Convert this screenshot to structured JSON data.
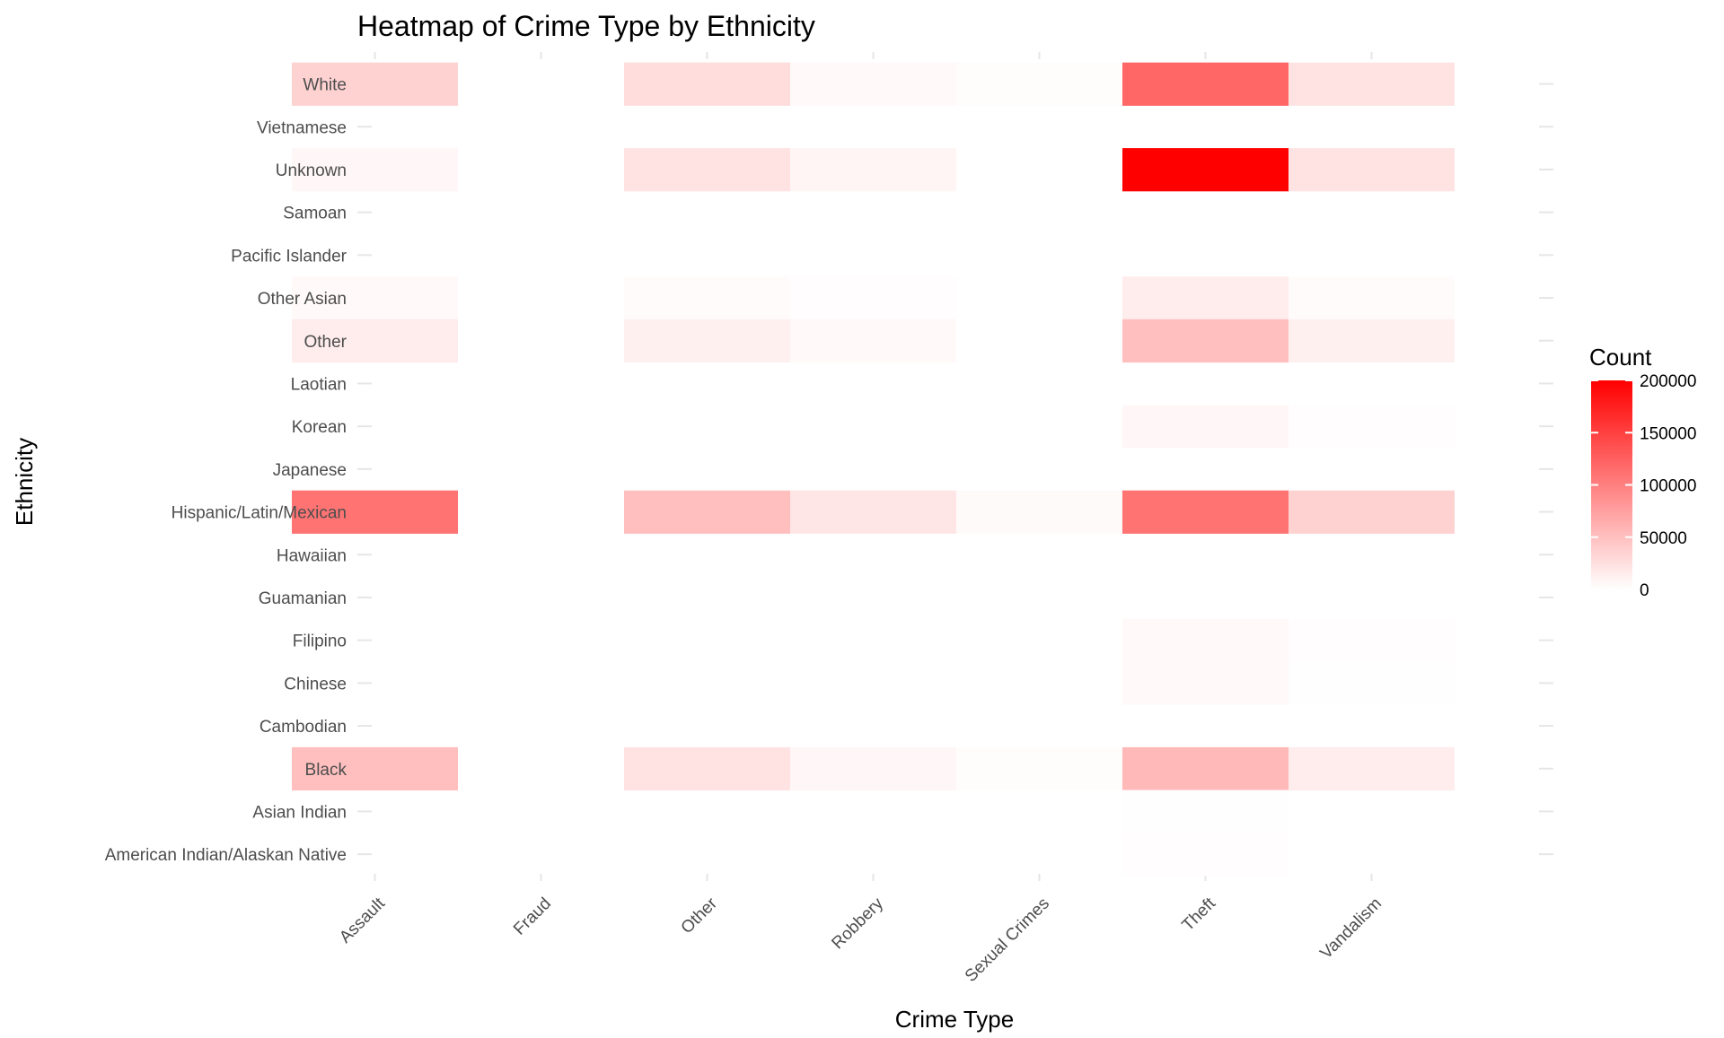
{
  "chart_data": {
    "type": "heatmap",
    "title": "Heatmap of Crime Type by Ethnicity",
    "xlabel": "Crime Type",
    "ylabel": "Ethnicity",
    "x_categories": [
      "Assault",
      "Fraud",
      "Other",
      "Robbery",
      "Sexual Crimes",
      "Theft",
      "Vandalism"
    ],
    "y_categories": [
      "American Indian/Alaskan Native",
      "Asian Indian",
      "Black",
      "Cambodian",
      "Chinese",
      "Filipino",
      "Guamanian",
      "Hawaiian",
      "Hispanic/Latin/Mexican",
      "Japanese",
      "Korean",
      "Laotian",
      "Other",
      "Other Asian",
      "Pacific Islander",
      "Samoan",
      "Unknown",
      "Vietnamese",
      "White"
    ],
    "cells": [
      {
        "x": "Assault",
        "y": "White",
        "value": 35000
      },
      {
        "x": "Other",
        "y": "White",
        "value": 27000
      },
      {
        "x": "Robbery",
        "y": "White",
        "value": 5000
      },
      {
        "x": "Sexual Crimes",
        "y": "White",
        "value": 2000
      },
      {
        "x": "Theft",
        "y": "White",
        "value": 120000
      },
      {
        "x": "Vandalism",
        "y": "White",
        "value": 22000
      },
      {
        "x": "Assault",
        "y": "Unknown",
        "value": 6000
      },
      {
        "x": "Other",
        "y": "Unknown",
        "value": 22000
      },
      {
        "x": "Robbery",
        "y": "Unknown",
        "value": 8000
      },
      {
        "x": "Theft",
        "y": "Unknown",
        "value": 200000
      },
      {
        "x": "Vandalism",
        "y": "Unknown",
        "value": 22000
      },
      {
        "x": "Assault",
        "y": "Other Asian",
        "value": 5000
      },
      {
        "x": "Other",
        "y": "Other Asian",
        "value": 3000
      },
      {
        "x": "Robbery",
        "y": "Other Asian",
        "value": 1500
      },
      {
        "x": "Theft",
        "y": "Other Asian",
        "value": 15000
      },
      {
        "x": "Vandalism",
        "y": "Other Asian",
        "value": 3000
      },
      {
        "x": "Assault",
        "y": "Other",
        "value": 15000
      },
      {
        "x": "Other",
        "y": "Other",
        "value": 12000
      },
      {
        "x": "Robbery",
        "y": "Other",
        "value": 5000
      },
      {
        "x": "Theft",
        "y": "Other",
        "value": 50000
      },
      {
        "x": "Vandalism",
        "y": "Other",
        "value": 12000
      },
      {
        "x": "Theft",
        "y": "Korean",
        "value": 6000
      },
      {
        "x": "Vandalism",
        "y": "Korean",
        "value": 1500
      },
      {
        "x": "Assault",
        "y": "Hispanic/Latin/Mexican",
        "value": 110000
      },
      {
        "x": "Other",
        "y": "Hispanic/Latin/Mexican",
        "value": 50000
      },
      {
        "x": "Robbery",
        "y": "Hispanic/Latin/Mexican",
        "value": 20000
      },
      {
        "x": "Sexual Crimes",
        "y": "Hispanic/Latin/Mexican",
        "value": 4000
      },
      {
        "x": "Theft",
        "y": "Hispanic/Latin/Mexican",
        "value": 110000
      },
      {
        "x": "Vandalism",
        "y": "Hispanic/Latin/Mexican",
        "value": 35000
      },
      {
        "x": "Theft",
        "y": "Filipino",
        "value": 5000
      },
      {
        "x": "Vandalism",
        "y": "Filipino",
        "value": 1200
      },
      {
        "x": "Theft",
        "y": "Chinese",
        "value": 5000
      },
      {
        "x": "Vandalism",
        "y": "Chinese",
        "value": 1000
      },
      {
        "x": "Assault",
        "y": "Black",
        "value": 50000
      },
      {
        "x": "Other",
        "y": "Black",
        "value": 22000
      },
      {
        "x": "Robbery",
        "y": "Black",
        "value": 6000
      },
      {
        "x": "Sexual Crimes",
        "y": "Black",
        "value": 2000
      },
      {
        "x": "Theft",
        "y": "Black",
        "value": 55000
      },
      {
        "x": "Vandalism",
        "y": "Black",
        "value": 15000
      },
      {
        "x": "Theft",
        "y": "Asian Indian",
        "value": 1000
      },
      {
        "x": "Theft",
        "y": "American Indian/Alaskan Native",
        "value": 1500
      }
    ],
    "color_scale": {
      "low": "#ffffff",
      "high": "#ff0000",
      "min": 0,
      "max": 200000
    },
    "legend": {
      "title": "Count",
      "ticks": [
        "200000",
        "150000",
        "100000",
        "50000",
        "0"
      ],
      "placement": "right"
    },
    "grid": true
  }
}
